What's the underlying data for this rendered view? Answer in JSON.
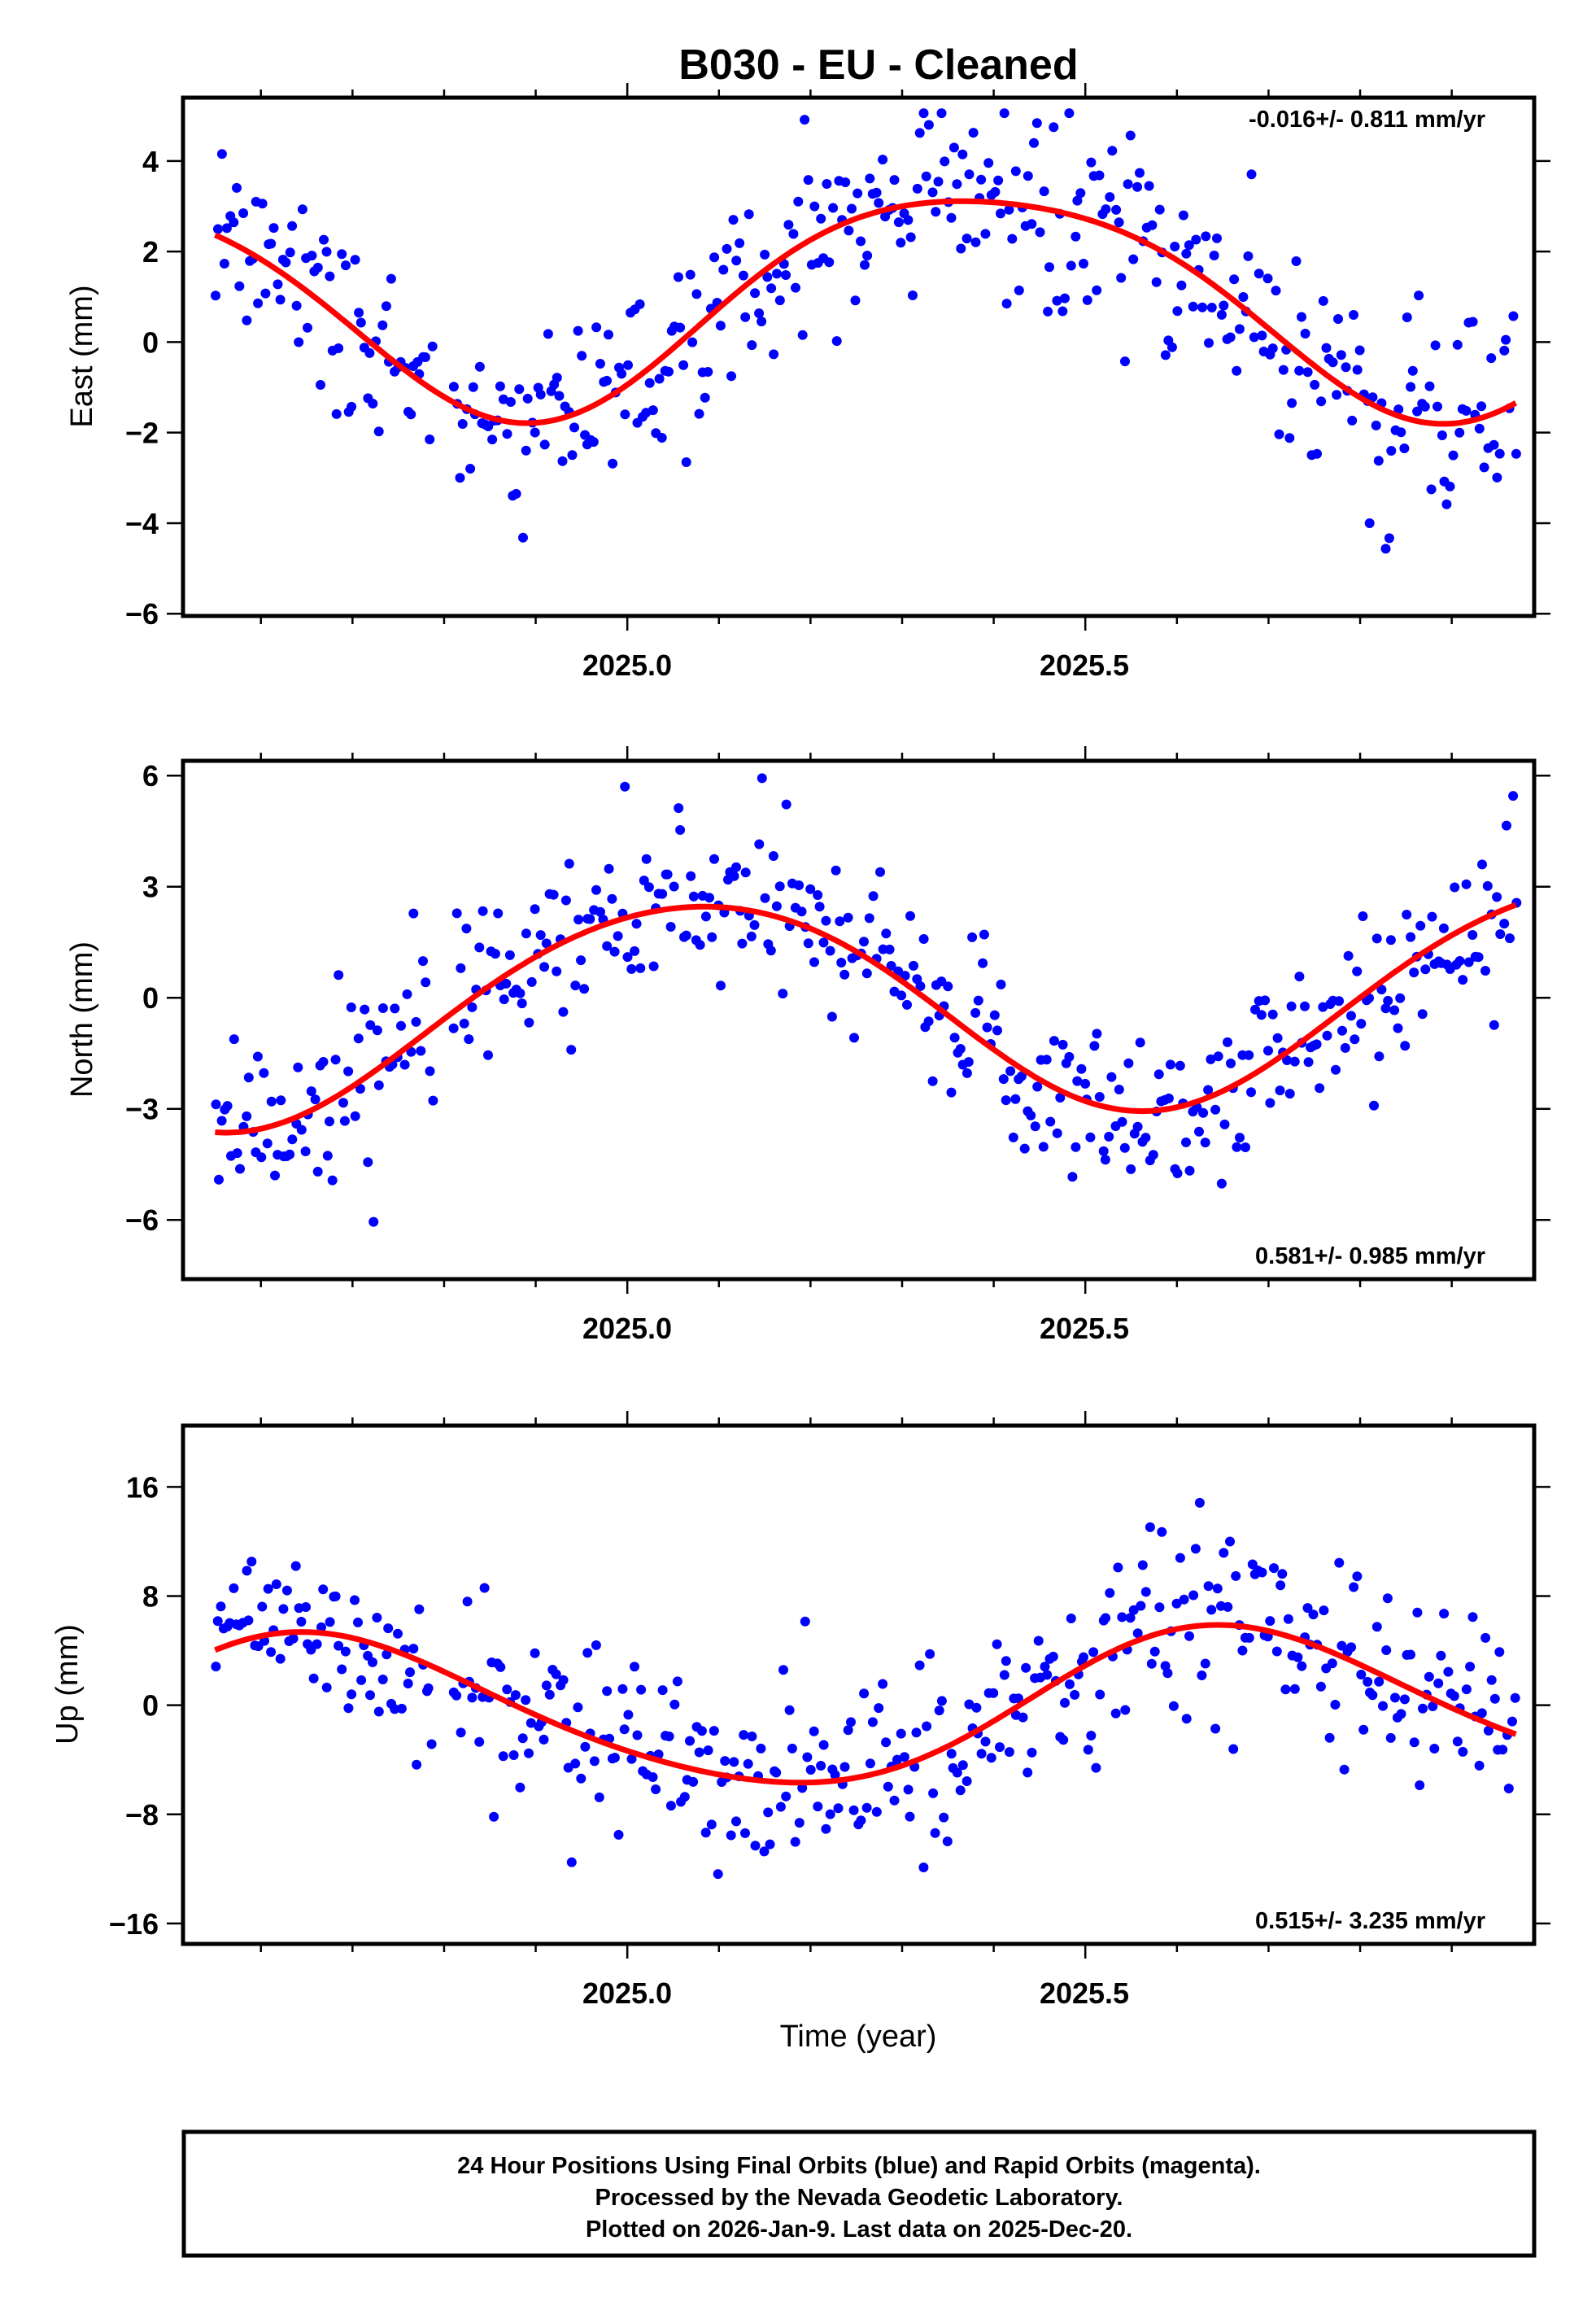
{
  "chart_data": {
    "type": "scatter",
    "title": "B030  - EU - Cleaned",
    "xlabel": "Time (year)",
    "xlim": [
      2024.515,
      2025.99
    ],
    "x_tick_labels": [
      "2025.0",
      "2025.5"
    ],
    "x_major_ticks": [
      2025.0,
      2025.5
    ],
    "x_minor_step": 0.1,
    "colors": {
      "points": "#0000ff",
      "fit": "#ff0000",
      "axes": "#000000"
    },
    "data_span": [
      2024.55,
      2025.97
    ],
    "panels": [
      {
        "id": "east",
        "ylabel": "East (mm)",
        "ylim": [
          -6.05,
          5.4
        ],
        "y_ticks": [
          -6,
          -4,
          -2,
          0,
          2,
          4
        ],
        "y_tick_labels": [
          "−6",
          "−4",
          "−2",
          "0",
          "2",
          "4"
        ],
        "rate_label": "-0.016+/- 0.811 mm/yr",
        "rate_position": "top-right",
        "fit": {
          "offset": 1.0,
          "rate": -0.016,
          "annual_amp": 2.45,
          "annual_peak": 2025.385,
          "semiannual_amp": 0.35,
          "semiannual_peak": 2025.15
        },
        "noise_sd": 1.05,
        "n_points": 420
      },
      {
        "id": "north",
        "ylabel": "North (mm)",
        "ylim": [
          -7.6,
          6.4
        ],
        "y_ticks": [
          -6,
          -3,
          0,
          3,
          6
        ],
        "y_tick_labels": [
          "−6",
          "−3",
          "0",
          "3",
          "6"
        ],
        "rate_label": "0.581+/- 0.985 mm/yr",
        "rate_position": "bottom-right",
        "fit": {
          "offset": -0.15,
          "rate": 0.581,
          "annual_amp": 2.9,
          "annual_peak": 2025.07,
          "semiannual_amp": 0.2,
          "semiannual_peak": 2025.3
        },
        "noise_sd": 1.2,
        "n_points": 420
      },
      {
        "id": "up",
        "ylabel": "Up (mm)",
        "ylim": [
          -17.5,
          20.5
        ],
        "y_ticks": [
          -16,
          -8,
          0,
          8,
          16
        ],
        "y_tick_labels": [
          "−16",
          "−8",
          "0",
          "8",
          "16"
        ],
        "rate_label": "0.515+/- 3.235 mm/yr",
        "rate_position": "bottom-right",
        "fit": {
          "offset": -0.4,
          "rate": 0.515,
          "annual_amp": 5.6,
          "annual_peak": 2025.66,
          "semiannual_amp": 0.6,
          "semiannual_peak": 2025.6
        },
        "noise_sd": 3.6,
        "n_points": 420
      }
    ],
    "footer_lines": [
      "24 Hour Positions Using Final Orbits (blue) and Rapid Orbits (magenta).",
      "Processed by the Nevada Geodetic Laboratory.",
      "Plotted on 2026-Jan-9. Last data on 2025-Dec-20."
    ]
  }
}
